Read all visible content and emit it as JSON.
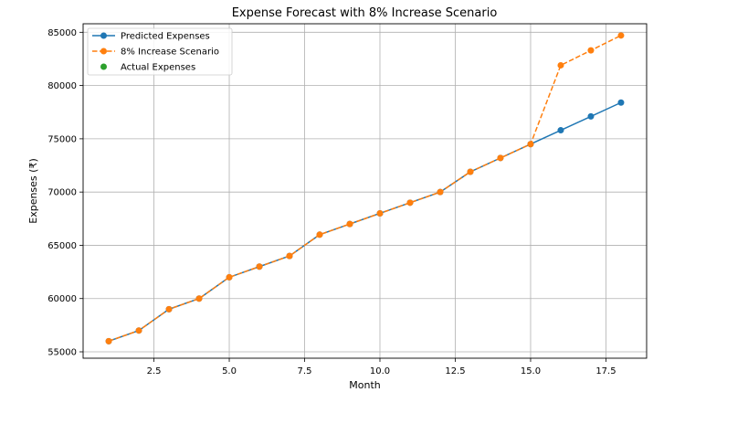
{
  "chart_data": {
    "type": "line",
    "title": "Expense Forecast with 8% Increase Scenario",
    "xlabel": "Month",
    "ylabel": "Expenses (₹)",
    "xlim": [
      0.15,
      18.85
    ],
    "ylim": [
      54400,
      85800
    ],
    "x_ticks": [
      2.5,
      5.0,
      7.5,
      10.0,
      12.5,
      15.0,
      17.5
    ],
    "x_tick_labels": [
      "2.5",
      "5.0",
      "7.5",
      "10.0",
      "12.5",
      "15.0",
      "17.5"
    ],
    "y_ticks": [
      55000,
      60000,
      65000,
      70000,
      75000,
      80000,
      85000
    ],
    "y_tick_labels": [
      "55000",
      "60000",
      "65000",
      "70000",
      "75000",
      "80000",
      "85000"
    ],
    "grid": true,
    "legend_position": "top-left",
    "series": [
      {
        "name": "Predicted Expenses",
        "color": "#1f77b4",
        "line_style": "solid",
        "marker": "circle",
        "x": [
          1,
          2,
          3,
          4,
          5,
          6,
          7,
          8,
          9,
          10,
          11,
          12,
          13,
          14,
          15,
          16,
          17,
          18
        ],
        "y": [
          56000,
          57000,
          59000,
          60000,
          62000,
          63000,
          64000,
          66000,
          67000,
          68000,
          69000,
          70000,
          71900,
          73200,
          74500,
          75800,
          77100,
          78400
        ]
      },
      {
        "name": "8% Increase Scenario",
        "color": "#ff7f0e",
        "line_style": "dashed",
        "marker": "circle",
        "x": [
          1,
          2,
          3,
          4,
          5,
          6,
          7,
          8,
          9,
          10,
          11,
          12,
          13,
          14,
          15,
          16,
          17,
          18
        ],
        "y": [
          56000,
          57000,
          59000,
          60000,
          62000,
          63000,
          64000,
          66000,
          67000,
          68000,
          69000,
          70000,
          71900,
          73200,
          74500,
          81900,
          83300,
          84700
        ]
      },
      {
        "name": "Actual Expenses",
        "color": "#2ca02c",
        "line_style": "none",
        "marker": "circle",
        "x": [],
        "y": []
      }
    ]
  }
}
